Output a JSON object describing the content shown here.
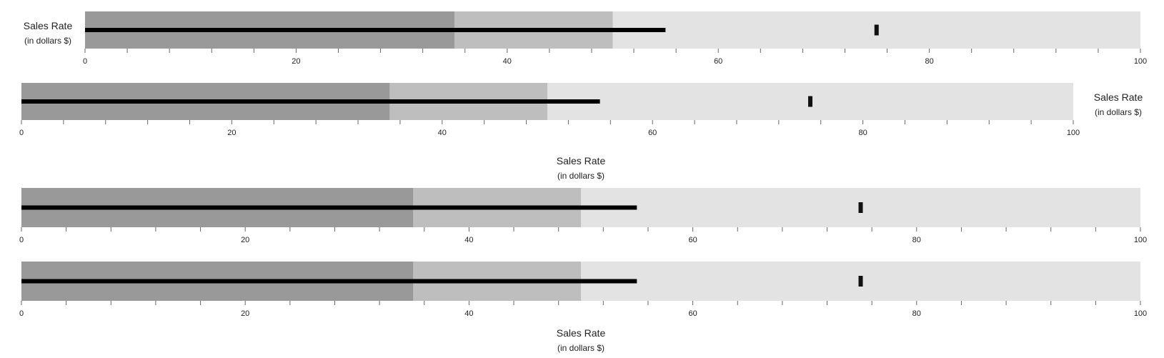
{
  "colors": {
    "range_dark": "#999999",
    "range_mid": "#bebebe",
    "range_light": "#e3e3e3",
    "measure": "#000000",
    "marker": "#111111",
    "axis": "#666666"
  },
  "chart_data": [
    {
      "type": "bullet",
      "title": "Sales Rate",
      "subtitle": "(in dollars $)",
      "title_position": "left",
      "ranges": [
        35,
        50,
        100
      ],
      "measure": 55,
      "marker": 75,
      "xlim": [
        0,
        100
      ],
      "ticks": [
        0,
        20,
        40,
        60,
        80,
        100
      ]
    },
    {
      "type": "bullet",
      "title": "Sales Rate",
      "subtitle": "(in dollars $)",
      "title_position": "right",
      "ranges": [
        35,
        50,
        100
      ],
      "measure": 55,
      "marker": 75,
      "xlim": [
        0,
        100
      ],
      "ticks": [
        0,
        20,
        40,
        60,
        80,
        100
      ]
    },
    {
      "type": "bullet",
      "title": "Sales Rate",
      "subtitle": "(in dollars $)",
      "title_position": "top",
      "ranges": [
        35,
        50,
        100
      ],
      "measure": 55,
      "marker": 75,
      "xlim": [
        0,
        100
      ],
      "ticks": [
        0,
        20,
        40,
        60,
        80,
        100
      ]
    },
    {
      "type": "bullet",
      "title": "Sales Rate",
      "subtitle": "(in dollars $)",
      "title_position": "bottom",
      "ranges": [
        35,
        50,
        100
      ],
      "measure": 55,
      "marker": 75,
      "xlim": [
        0,
        100
      ],
      "ticks": [
        0,
        20,
        40,
        60,
        80,
        100
      ]
    }
  ]
}
